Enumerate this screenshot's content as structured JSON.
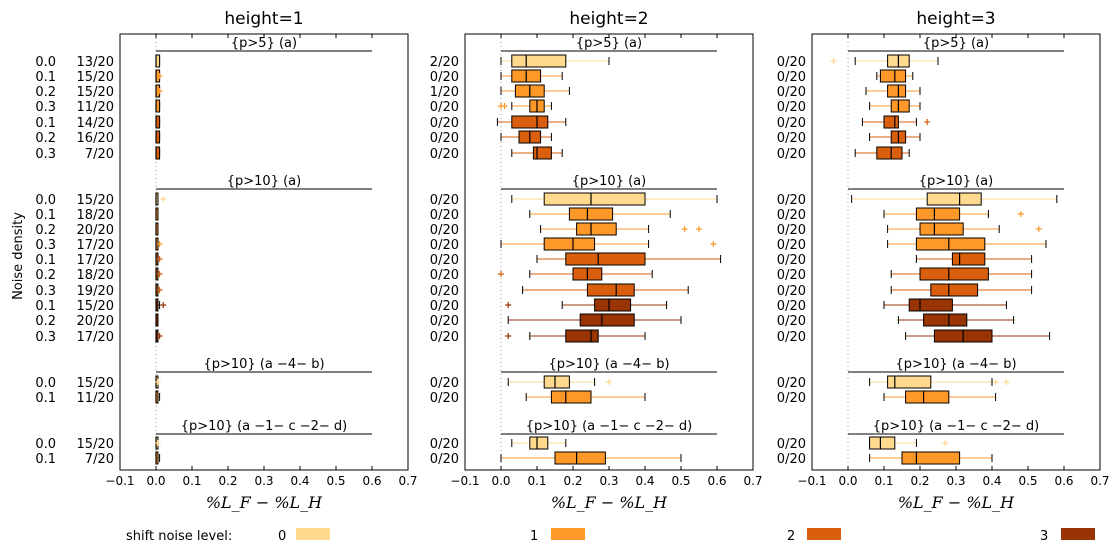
{
  "chart_data": {
    "type": "boxplot",
    "ylabel": "Noise density",
    "xlabel": "%L_F − %L_H",
    "xticks": [
      "−0.1",
      "0.0",
      "0.1",
      "0.2",
      "0.3",
      "0.4",
      "0.5",
      "0.6",
      "0.7"
    ],
    "xlim": [
      -0.1,
      0.7
    ],
    "legend": {
      "title": "shift noise level:",
      "placement": "bottom",
      "items": [
        {
          "label": "0",
          "color": "#fed98e"
        },
        {
          "label": "1",
          "color": "#fe9929"
        },
        {
          "label": "2",
          "color": "#d95f0e"
        },
        {
          "label": "3",
          "color": "#993404"
        }
      ]
    },
    "groups": [
      {
        "title": "{p>5} (a)",
        "noise": [
          "0.0",
          "0.1",
          "0.2",
          "0.3",
          "0.1",
          "0.2",
          "0.3"
        ],
        "shift": [
          0,
          1,
          1,
          1,
          2,
          2,
          2
        ]
      },
      {
        "title": "{p>10} (a)",
        "noise": [
          "0.0",
          "0.1",
          "0.2",
          "0.3",
          "0.1",
          "0.2",
          "0.3",
          "0.1",
          "0.2",
          "0.3"
        ],
        "shift": [
          0,
          1,
          1,
          1,
          2,
          2,
          2,
          3,
          3,
          3
        ]
      },
      {
        "title": "{p>10} (a −4− b)",
        "noise": [
          "0.0",
          "0.1"
        ],
        "shift": [
          0,
          1
        ]
      },
      {
        "title": "{p>10} (a −1− c −2− d)",
        "noise": [
          "0.0",
          "0.1"
        ],
        "shift": [
          0,
          1
        ]
      }
    ],
    "panels": [
      {
        "title": "height=1",
        "groups": [
          {
            "counts": [
              "13/20",
              "15/20",
              "15/20",
              "11/20",
              "14/20",
              "16/20",
              "7/20"
            ],
            "boxes": [
              {
                "wl": 0.0,
                "q1": 0.0,
                "med": 0.0,
                "q3": 0.01,
                "wh": 0.01,
                "fl": []
              },
              {
                "wl": 0.0,
                "q1": 0.0,
                "med": 0.0,
                "q3": 0.01,
                "wh": 0.01,
                "fl": [
                  0.01
                ]
              },
              {
                "wl": 0.0,
                "q1": 0.0,
                "med": 0.0,
                "q3": 0.01,
                "wh": 0.01,
                "fl": [
                  0.01
                ]
              },
              {
                "wl": 0.0,
                "q1": 0.0,
                "med": 0.0,
                "q3": 0.01,
                "wh": 0.01,
                "fl": []
              },
              {
                "wl": 0.0,
                "q1": 0.0,
                "med": 0.0,
                "q3": 0.01,
                "wh": 0.01,
                "fl": []
              },
              {
                "wl": 0.0,
                "q1": 0.0,
                "med": 0.0,
                "q3": 0.01,
                "wh": 0.01,
                "fl": []
              },
              {
                "wl": 0.0,
                "q1": 0.0,
                "med": 0.0,
                "q3": 0.01,
                "wh": 0.01,
                "fl": []
              }
            ]
          },
          {
            "counts": [
              "15/20",
              "18/20",
              "20/20",
              "17/20",
              "17/20",
              "18/20",
              "19/20",
              "15/20",
              "20/20",
              "17/20"
            ],
            "boxes": [
              {
                "wl": 0.0,
                "q1": 0.0,
                "med": 0.0,
                "q3": 0.0,
                "wh": 0.005,
                "fl": [
                  0.02
                ]
              },
              {
                "wl": 0.0,
                "q1": 0.0,
                "med": 0.0,
                "q3": 0.0,
                "wh": 0.005,
                "fl": []
              },
              {
                "wl": 0.0,
                "q1": 0.0,
                "med": 0.0,
                "q3": 0.0,
                "wh": 0.005,
                "fl": []
              },
              {
                "wl": 0.0,
                "q1": 0.0,
                "med": 0.0,
                "q3": 0.0,
                "wh": 0.005,
                "fl": [
                  0.01
                ]
              },
              {
                "wl": 0.0,
                "q1": 0.0,
                "med": 0.0,
                "q3": 0.0,
                "wh": 0.005,
                "fl": [
                  0.01
                ]
              },
              {
                "wl": 0.0,
                "q1": 0.0,
                "med": 0.0,
                "q3": 0.0,
                "wh": 0.005,
                "fl": [
                  0.01
                ]
              },
              {
                "wl": 0.0,
                "q1": 0.0,
                "med": 0.0,
                "q3": 0.0,
                "wh": 0.005,
                "fl": [
                  0.01
                ]
              },
              {
                "wl": 0.0,
                "q1": 0.0,
                "med": 0.0,
                "q3": 0.005,
                "wh": 0.01,
                "fl": [
                  0.02
                ]
              },
              {
                "wl": 0.0,
                "q1": 0.0,
                "med": 0.0,
                "q3": 0.0,
                "wh": 0.005,
                "fl": []
              },
              {
                "wl": 0.0,
                "q1": 0.0,
                "med": 0.0,
                "q3": 0.0,
                "wh": 0.005,
                "fl": [
                  0.01
                ]
              }
            ]
          },
          {
            "counts": [
              "15/20",
              "11/20"
            ],
            "boxes": [
              {
                "wl": 0.0,
                "q1": 0.0,
                "med": 0.0,
                "q3": 0.0,
                "wh": 0.005,
                "fl": [
                  0.005
                ]
              },
              {
                "wl": 0.0,
                "q1": 0.0,
                "med": 0.0,
                "q3": 0.005,
                "wh": 0.01,
                "fl": []
              }
            ]
          },
          {
            "counts": [
              "15/20",
              "7/20"
            ],
            "boxes": [
              {
                "wl": 0.0,
                "q1": 0.0,
                "med": 0.0,
                "q3": 0.0,
                "wh": 0.005,
                "fl": [
                  0.005
                ]
              },
              {
                "wl": 0.0,
                "q1": 0.0,
                "med": 0.0,
                "q3": 0.005,
                "wh": 0.01,
                "fl": []
              }
            ]
          }
        ]
      },
      {
        "title": "height=2",
        "groups": [
          {
            "counts": [
              "2/20",
              "0/20",
              "1/20",
              "0/20",
              "0/20",
              "0/20",
              "0/20"
            ],
            "boxes": [
              {
                "wl": 0.0,
                "q1": 0.03,
                "med": 0.07,
                "q3": 0.18,
                "wh": 0.3,
                "fl": []
              },
              {
                "wl": 0.0,
                "q1": 0.03,
                "med": 0.07,
                "q3": 0.11,
                "wh": 0.17,
                "fl": []
              },
              {
                "wl": 0.0,
                "q1": 0.04,
                "med": 0.08,
                "q3": 0.12,
                "wh": 0.19,
                "fl": []
              },
              {
                "wl": 0.03,
                "q1": 0.08,
                "med": 0.1,
                "q3": 0.12,
                "wh": 0.14,
                "fl": [
                  0.0,
                  0.01
                ]
              },
              {
                "wl": -0.01,
                "q1": 0.03,
                "med": 0.1,
                "q3": 0.13,
                "wh": 0.18,
                "fl": []
              },
              {
                "wl": 0.0,
                "q1": 0.05,
                "med": 0.08,
                "q3": 0.11,
                "wh": 0.14,
                "fl": []
              },
              {
                "wl": 0.03,
                "q1": 0.09,
                "med": 0.1,
                "q3": 0.14,
                "wh": 0.17,
                "fl": []
              }
            ]
          },
          {
            "counts": [
              "0/20",
              "0/20",
              "0/20",
              "0/20",
              "0/20",
              "0/20",
              "0/20",
              "0/20",
              "0/20",
              "0/20"
            ],
            "boxes": [
              {
                "wl": 0.03,
                "q1": 0.12,
                "med": 0.25,
                "q3": 0.4,
                "wh": 0.6,
                "fl": []
              },
              {
                "wl": 0.08,
                "q1": 0.19,
                "med": 0.24,
                "q3": 0.31,
                "wh": 0.47,
                "fl": []
              },
              {
                "wl": 0.11,
                "q1": 0.21,
                "med": 0.25,
                "q3": 0.32,
                "wh": 0.41,
                "fl": [
                  0.51,
                  0.55
                ]
              },
              {
                "wl": 0.0,
                "q1": 0.12,
                "med": 0.2,
                "q3": 0.26,
                "wh": 0.41,
                "fl": [
                  0.59
                ]
              },
              {
                "wl": 0.1,
                "q1": 0.18,
                "med": 0.27,
                "q3": 0.4,
                "wh": 0.61,
                "fl": []
              },
              {
                "wl": 0.08,
                "q1": 0.2,
                "med": 0.24,
                "q3": 0.28,
                "wh": 0.42,
                "fl": [
                  0.0
                ]
              },
              {
                "wl": 0.06,
                "q1": 0.24,
                "med": 0.32,
                "q3": 0.37,
                "wh": 0.52,
                "fl": []
              },
              {
                "wl": 0.17,
                "q1": 0.26,
                "med": 0.3,
                "q3": 0.36,
                "wh": 0.46,
                "fl": [
                  0.02
                ]
              },
              {
                "wl": 0.02,
                "q1": 0.22,
                "med": 0.28,
                "q3": 0.37,
                "wh": 0.5,
                "fl": []
              },
              {
                "wl": 0.08,
                "q1": 0.18,
                "med": 0.25,
                "q3": 0.27,
                "wh": 0.4,
                "fl": [
                  0.02
                ]
              }
            ]
          },
          {
            "counts": [
              "0/20",
              "0/20"
            ],
            "boxes": [
              {
                "wl": 0.02,
                "q1": 0.12,
                "med": 0.15,
                "q3": 0.19,
                "wh": 0.26,
                "fl": [
                  0.3
                ]
              },
              {
                "wl": 0.07,
                "q1": 0.14,
                "med": 0.18,
                "q3": 0.25,
                "wh": 0.4,
                "fl": []
              }
            ]
          },
          {
            "counts": [
              "0/20",
              "0/20"
            ],
            "boxes": [
              {
                "wl": 0.03,
                "q1": 0.08,
                "med": 0.1,
                "q3": 0.13,
                "wh": 0.18,
                "fl": []
              },
              {
                "wl": 0.0,
                "q1": 0.15,
                "med": 0.21,
                "q3": 0.29,
                "wh": 0.5,
                "fl": []
              }
            ]
          }
        ]
      },
      {
        "title": "height=3",
        "groups": [
          {
            "counts": [
              "0/20",
              "0/20",
              "0/20",
              "0/20",
              "0/20",
              "0/20",
              "0/20"
            ],
            "boxes": [
              {
                "wl": 0.02,
                "q1": 0.11,
                "med": 0.14,
                "q3": 0.17,
                "wh": 0.25,
                "fl": [
                  -0.04
                ]
              },
              {
                "wl": 0.08,
                "q1": 0.09,
                "med": 0.13,
                "q3": 0.16,
                "wh": 0.18,
                "fl": []
              },
              {
                "wl": 0.05,
                "q1": 0.11,
                "med": 0.14,
                "q3": 0.16,
                "wh": 0.2,
                "fl": []
              },
              {
                "wl": 0.06,
                "q1": 0.12,
                "med": 0.14,
                "q3": 0.17,
                "wh": 0.2,
                "fl": []
              },
              {
                "wl": 0.04,
                "q1": 0.1,
                "med": 0.13,
                "q3": 0.14,
                "wh": 0.19,
                "fl": [
                  0.22
                ]
              },
              {
                "wl": 0.06,
                "q1": 0.12,
                "med": 0.14,
                "q3": 0.16,
                "wh": 0.2,
                "fl": []
              },
              {
                "wl": 0.02,
                "q1": 0.08,
                "med": 0.12,
                "q3": 0.15,
                "wh": 0.17,
                "fl": []
              }
            ]
          },
          {
            "counts": [
              "0/20",
              "0/20",
              "0/20",
              "0/20",
              "0/20",
              "0/20",
              "0/20",
              "0/20",
              "0/20",
              "0/20"
            ],
            "boxes": [
              {
                "wl": 0.01,
                "q1": 0.22,
                "med": 0.31,
                "q3": 0.37,
                "wh": 0.58,
                "fl": []
              },
              {
                "wl": 0.1,
                "q1": 0.19,
                "med": 0.24,
                "q3": 0.31,
                "wh": 0.39,
                "fl": [
                  0.48
                ]
              },
              {
                "wl": 0.11,
                "q1": 0.2,
                "med": 0.24,
                "q3": 0.32,
                "wh": 0.42,
                "fl": [
                  0.53
                ]
              },
              {
                "wl": 0.11,
                "q1": 0.19,
                "med": 0.28,
                "q3": 0.38,
                "wh": 0.55,
                "fl": []
              },
              {
                "wl": 0.19,
                "q1": 0.29,
                "med": 0.31,
                "q3": 0.38,
                "wh": 0.51,
                "fl": []
              },
              {
                "wl": 0.12,
                "q1": 0.2,
                "med": 0.28,
                "q3": 0.39,
                "wh": 0.51,
                "fl": []
              },
              {
                "wl": 0.12,
                "q1": 0.23,
                "med": 0.28,
                "q3": 0.36,
                "wh": 0.51,
                "fl": []
              },
              {
                "wl": 0.1,
                "q1": 0.17,
                "med": 0.2,
                "q3": 0.29,
                "wh": 0.44,
                "fl": []
              },
              {
                "wl": 0.14,
                "q1": 0.21,
                "med": 0.28,
                "q3": 0.33,
                "wh": 0.46,
                "fl": []
              },
              {
                "wl": 0.16,
                "q1": 0.24,
                "med": 0.32,
                "q3": 0.4,
                "wh": 0.56,
                "fl": []
              }
            ]
          },
          {
            "counts": [
              "0/20",
              "0/20"
            ],
            "boxes": [
              {
                "wl": 0.06,
                "q1": 0.11,
                "med": 0.13,
                "q3": 0.23,
                "wh": 0.4,
                "fl": [
                  0.41,
                  0.44
                ]
              },
              {
                "wl": 0.1,
                "q1": 0.16,
                "med": 0.21,
                "q3": 0.28,
                "wh": 0.41,
                "fl": []
              }
            ]
          },
          {
            "counts": [
              "0/20",
              "0/20"
            ],
            "boxes": [
              {
                "wl": 0.06,
                "q1": 0.06,
                "med": 0.09,
                "q3": 0.13,
                "wh": 0.19,
                "fl": [
                  0.27
                ]
              },
              {
                "wl": 0.06,
                "q1": 0.15,
                "med": 0.19,
                "q3": 0.31,
                "wh": 0.4,
                "fl": []
              }
            ]
          }
        ]
      }
    ]
  }
}
